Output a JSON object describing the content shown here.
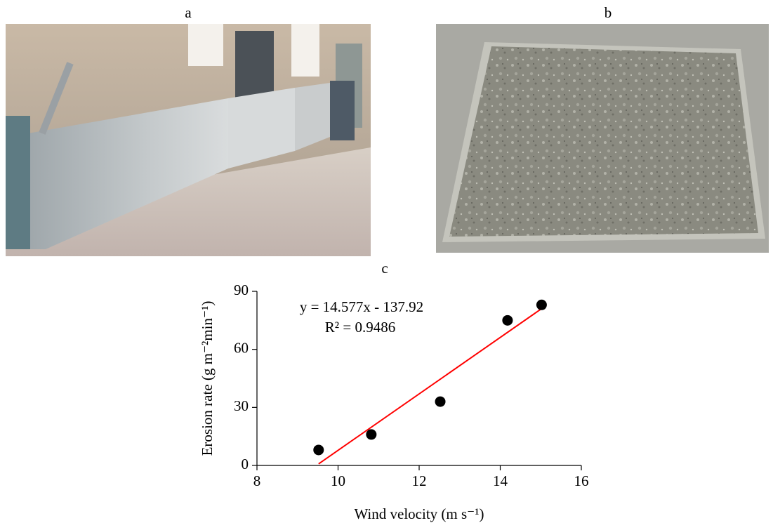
{
  "panels": {
    "a": "a",
    "b": "b"
  },
  "chart_data": {
    "type": "scatter",
    "title": "c",
    "x_label": "Wind velocity (m s⁻¹)",
    "y_label": "Erosion rate (g m⁻²min⁻¹)",
    "x": [
      9.52,
      10.82,
      12.52,
      14.18,
      15.02
    ],
    "values": [
      8,
      16,
      33,
      75,
      83
    ],
    "color": "#000000",
    "trendline_color": "#ff0000",
    "annotations": [
      "y = 14.577x - 137.92",
      "R² = 0.9486"
    ],
    "xlim": [
      8,
      16
    ],
    "xticks": [
      8,
      10,
      12,
      14,
      16
    ],
    "ylim": [
      0,
      90
    ],
    "yticks": [
      0,
      30,
      60,
      90
    ],
    "grid": false
  }
}
